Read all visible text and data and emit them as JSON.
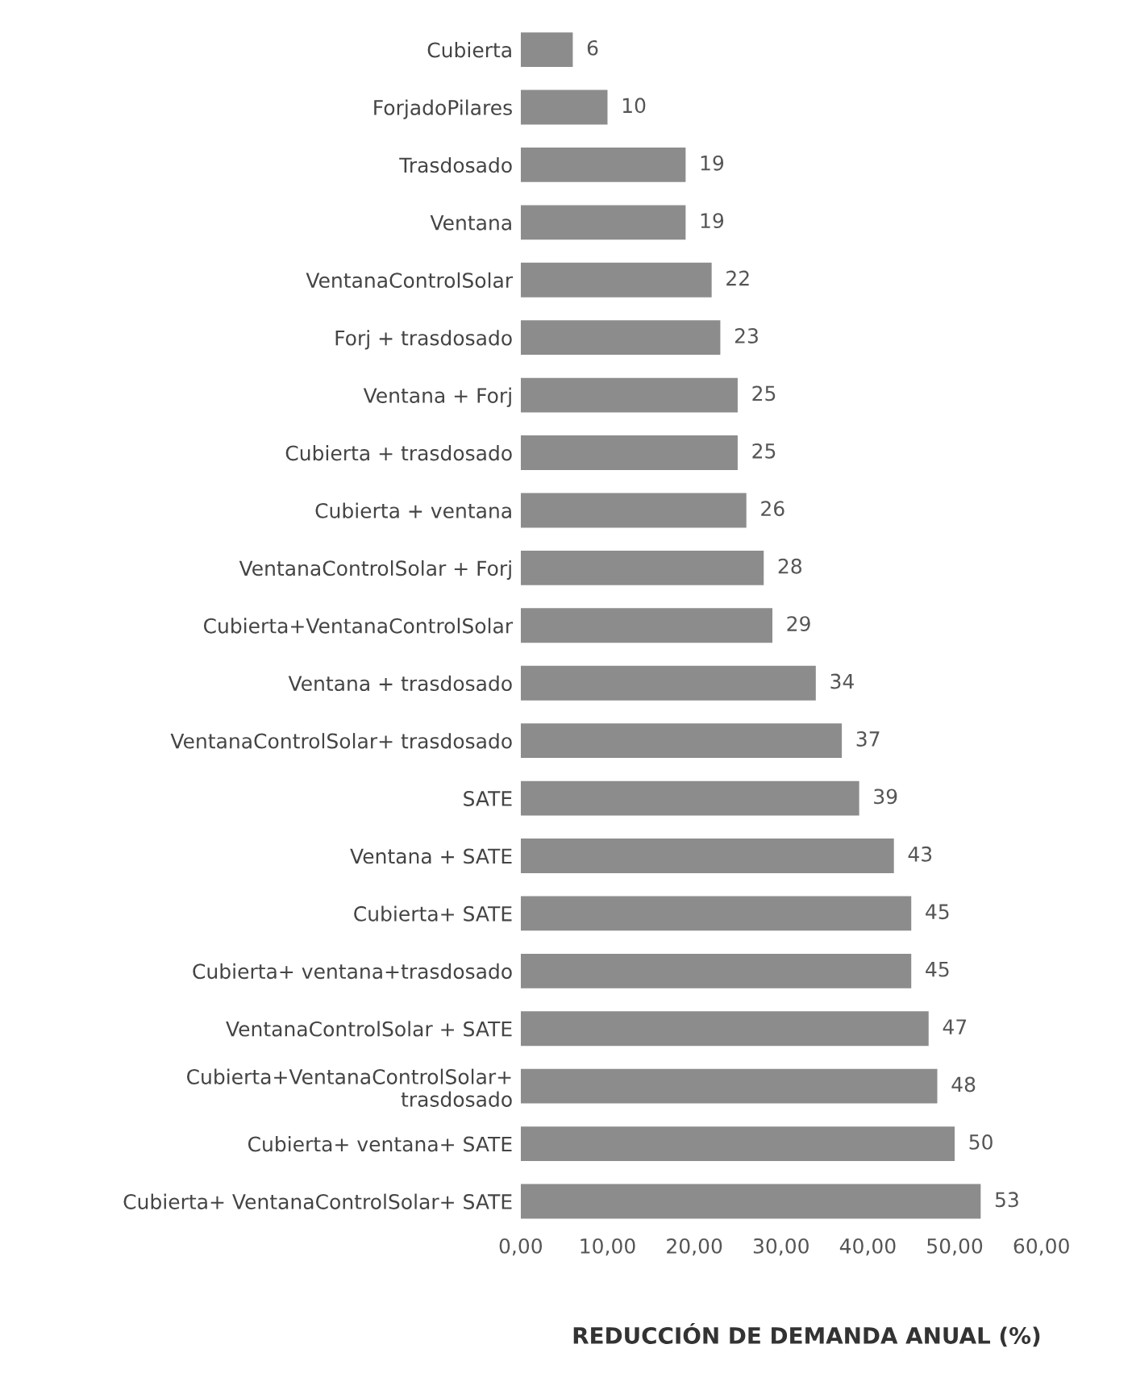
{
  "chart_data": {
    "type": "bar",
    "orientation": "horizontal",
    "xlabel": "REDUCCIÓN DE DEMANDA ANUAL (%)",
    "categories": [
      "Cubierta",
      "ForjadoPilares",
      "Trasdosado",
      "Ventana",
      "VentanaControlSolar",
      "Forj + trasdosado",
      "Ventana + Forj",
      "Cubierta + trasdosado",
      "Cubierta + ventana",
      "VentanaControlSolar + Forj",
      "Cubierta+VentanaControlSolar",
      "Ventana + trasdosado",
      "VentanaControlSolar+ trasdosado",
      "SATE",
      "Ventana + SATE",
      "Cubierta+ SATE",
      "Cubierta+ ventana+trasdosado",
      "VentanaControlSolar + SATE",
      "Cubierta+VentanaControlSolar+\ntrasdosado",
      "Cubierta+ ventana+ SATE",
      "Cubierta+ VentanaControlSolar+ SATE"
    ],
    "values": [
      6,
      10,
      19,
      19,
      22,
      23,
      25,
      25,
      26,
      28,
      29,
      34,
      37,
      39,
      43,
      45,
      45,
      47,
      48,
      50,
      53
    ],
    "color": "#8c8c8c",
    "data_labels": true,
    "grid": false,
    "legend": false,
    "xlim": [
      0,
      60
    ],
    "xticks": [
      {
        "value": 0,
        "label": "0,00"
      },
      {
        "value": 10,
        "label": "10,00"
      },
      {
        "value": 20,
        "label": "20,00"
      },
      {
        "value": 30,
        "label": "30,00"
      },
      {
        "value": 40,
        "label": "40,00"
      },
      {
        "value": 50,
        "label": "50,00"
      },
      {
        "value": 60,
        "label": "60,00"
      }
    ]
  }
}
